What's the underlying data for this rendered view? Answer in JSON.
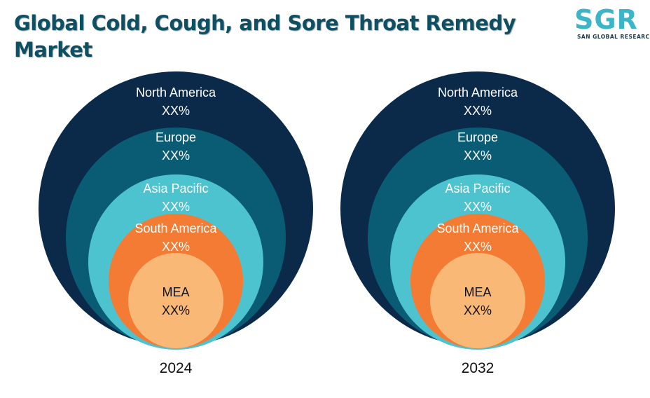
{
  "title": "Global Cold, Cough, and Sore Throat Remedy Market",
  "logo": {
    "name": "SGR",
    "tagline": "SAN GLOBAL RESEARCH"
  },
  "colors": {
    "title": "#0d4f63",
    "north_america": "#0b2a4a",
    "europe": "#0a5c75",
    "asia_pacific": "#4ec3d0",
    "south_america": "#f47b33",
    "mea": "#fab877"
  },
  "chart_data": [
    {
      "type": "nested-circles",
      "year_label": "2024",
      "segments": [
        {
          "name": "North America",
          "value": "XX%"
        },
        {
          "name": "Europe",
          "value": "XX%"
        },
        {
          "name": "Asia Pacific",
          "value": "XX%"
        },
        {
          "name": "South America",
          "value": "XX%"
        },
        {
          "name": "MEA",
          "value": "XX%"
        }
      ]
    },
    {
      "type": "nested-circles",
      "year_label": "2032",
      "segments": [
        {
          "name": "North America",
          "value": "XX%"
        },
        {
          "name": "Europe",
          "value": "XX%"
        },
        {
          "name": "Asia Pacific",
          "value": "XX%"
        },
        {
          "name": "South America",
          "value": "XX%"
        },
        {
          "name": "MEA",
          "value": "XX%"
        }
      ]
    }
  ]
}
